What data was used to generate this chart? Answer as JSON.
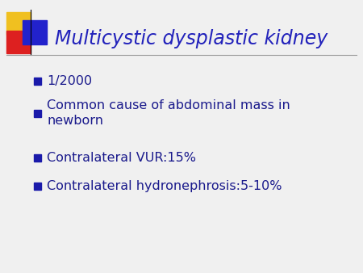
{
  "title": "Multicystic dysplastic kidney",
  "title_color": "#2222bb",
  "title_fontsize": 17,
  "background_color": "#f0f0f0",
  "bullet_color": "#1a1a8c",
  "bullet_square_color": "#1a1aaa",
  "bullet_items": [
    "1/2000",
    "Common cause of abdominal mass in\nnewborn",
    "Contralateral VUR:15%",
    "Contralateral hydronephrosis:5-10%"
  ],
  "bullet_fontsize": 11.5,
  "line_color": "#999999",
  "logo_colors": {
    "yellow": "#f0c020",
    "red": "#dd2020",
    "blue": "#2222cc"
  },
  "figsize": [
    4.5,
    3.38
  ],
  "dpi": 100
}
